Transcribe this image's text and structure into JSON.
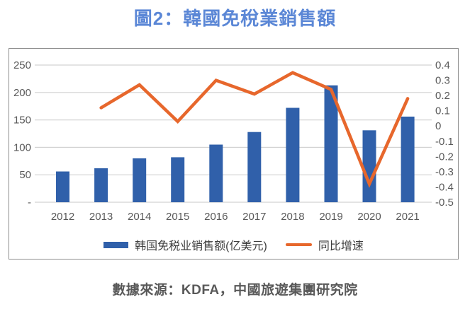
{
  "title": {
    "text": "圖2：韓國免稅業銷售額",
    "color": "#5b87d6"
  },
  "footer": {
    "text": "數據來源：KDFA，中國旅遊集團研究院"
  },
  "colors": {
    "bar": "#3060aa",
    "line": "#e7672c",
    "gridline": "#d2d2d2",
    "tick_text": "#595959",
    "frame_border": "#8f8f8f"
  },
  "chart_data": {
    "type": "combo-bar-line",
    "title": "圖2：韓國免稅業銷售額",
    "categories": [
      "2012",
      "2013",
      "2014",
      "2015",
      "2016",
      "2017",
      "2018",
      "2019",
      "2020",
      "2021"
    ],
    "series": [
      {
        "name": "韩国免税业销售额(亿美元)",
        "type": "bar",
        "axis": "left",
        "color": "#3060aa",
        "values": [
          56,
          62,
          80,
          82,
          105,
          128,
          172,
          213,
          131,
          156
        ]
      },
      {
        "name": "同比增速",
        "type": "line",
        "axis": "right",
        "color": "#e7672c",
        "values": [
          null,
          0.12,
          0.27,
          0.03,
          0.3,
          0.21,
          0.35,
          0.24,
          -0.38,
          0.18
        ]
      }
    ],
    "left_axis": {
      "min": 0,
      "max": 250,
      "ticks": [
        {
          "v": 250,
          "label": "250"
        },
        {
          "v": 200,
          "label": "200"
        },
        {
          "v": 150,
          "label": "150"
        },
        {
          "v": 100,
          "label": "100"
        },
        {
          "v": 50,
          "label": "50"
        },
        {
          "v": 0,
          "label": "-"
        }
      ]
    },
    "right_axis": {
      "min": -0.5,
      "max": 0.4,
      "ticks": [
        {
          "v": 0.4,
          "label": "0.4"
        },
        {
          "v": 0.3,
          "label": "0.3"
        },
        {
          "v": 0.2,
          "label": "0.2"
        },
        {
          "v": 0.1,
          "label": "0.1"
        },
        {
          "v": 0,
          "label": "0"
        },
        {
          "v": -0.1,
          "label": "-0.1"
        },
        {
          "v": -0.2,
          "label": "-0.2"
        },
        {
          "v": -0.3,
          "label": "-0.3"
        },
        {
          "v": -0.4,
          "label": "-0.4"
        },
        {
          "v": -0.5,
          "label": "-0.5"
        }
      ]
    },
    "grid": true,
    "legend_position": "bottom"
  }
}
